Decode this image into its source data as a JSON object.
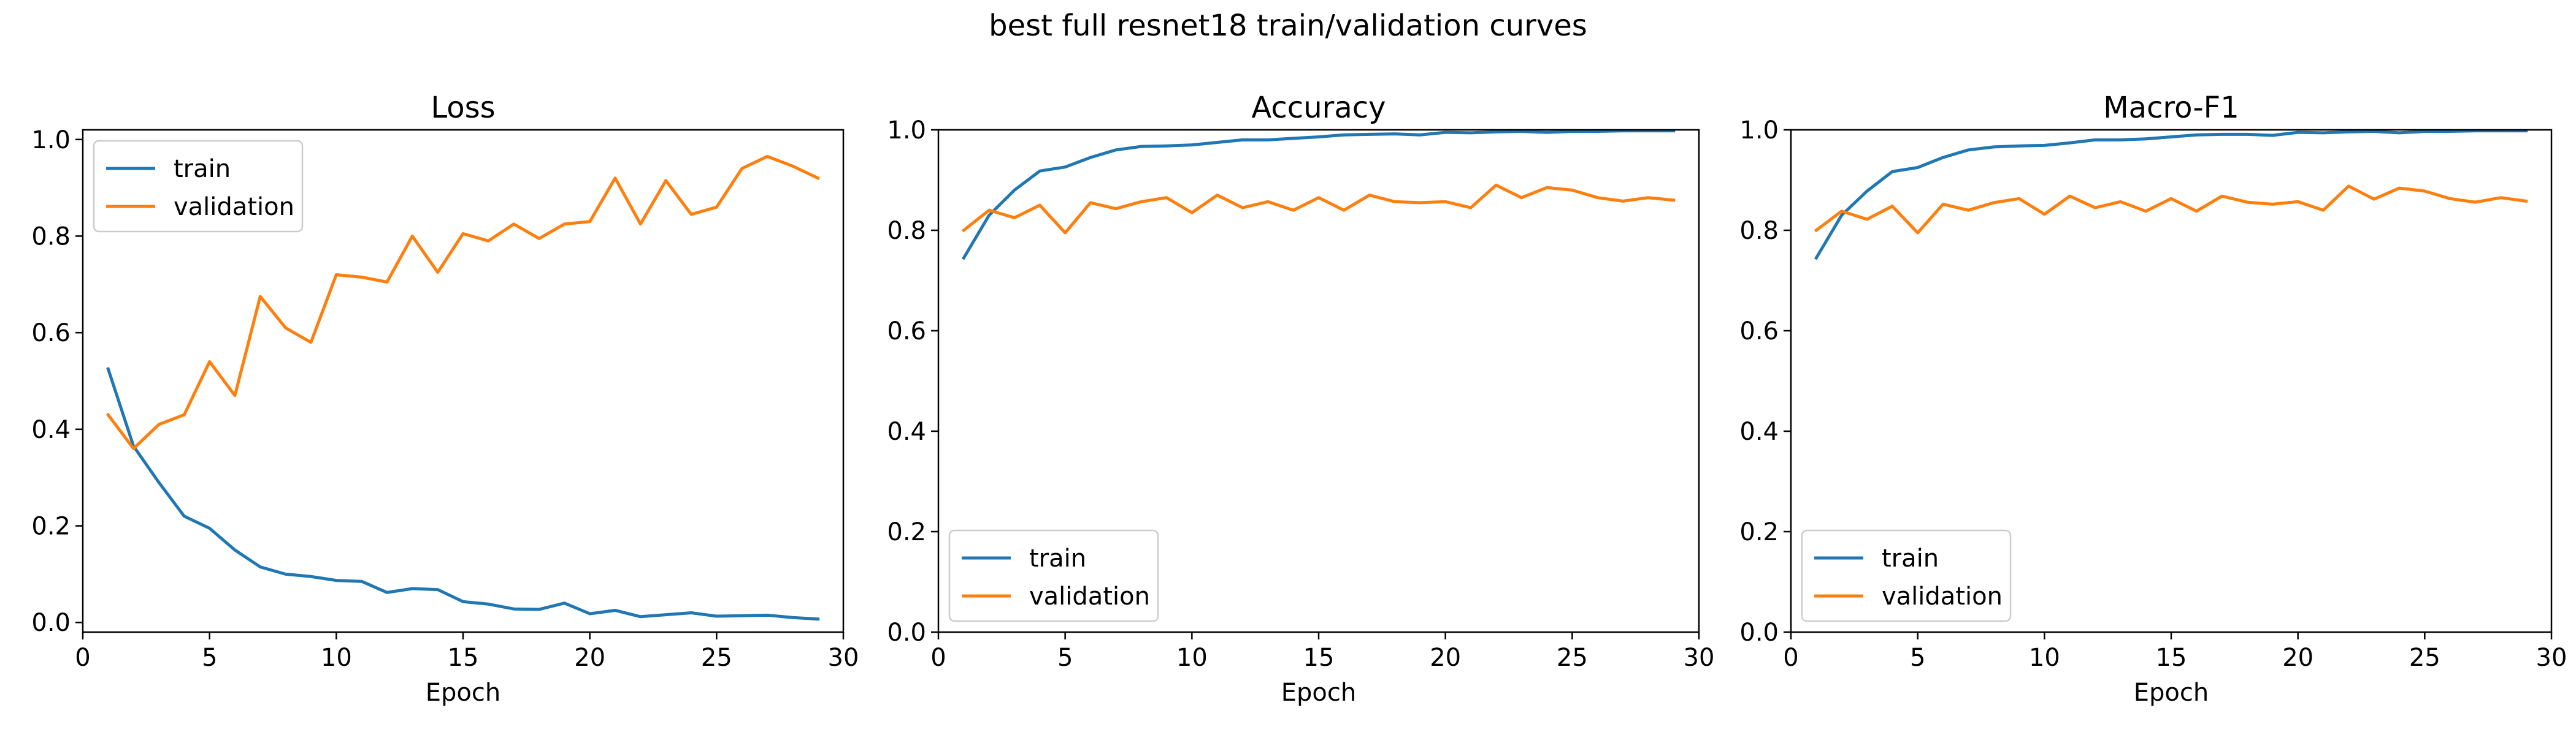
{
  "figure": {
    "suptitle": "best full resnet18 train/validation curves"
  },
  "colors": {
    "train": "#1f77b4",
    "validation": "#ff7f0e"
  },
  "chart_data": [
    {
      "type": "line",
      "title": "Loss",
      "xlabel": "Epoch",
      "ylabel": "",
      "xlim": [
        0,
        30
      ],
      "ylim": [
        -0.02,
        1.02
      ],
      "xticks": [
        0,
        5,
        10,
        15,
        20,
        25,
        30
      ],
      "yticks": [
        0.0,
        0.2,
        0.4,
        0.6,
        0.8,
        1.0
      ],
      "legend": "upper-left",
      "x": [
        1,
        2,
        3,
        4,
        5,
        6,
        7,
        8,
        9,
        10,
        11,
        12,
        13,
        14,
        15,
        16,
        17,
        18,
        19,
        20,
        21,
        22,
        23,
        24,
        25,
        26,
        27,
        28,
        29
      ],
      "series": [
        {
          "name": "train",
          "values": [
            0.525,
            0.365,
            0.29,
            0.22,
            0.195,
            0.15,
            0.115,
            0.1,
            0.095,
            0.087,
            0.085,
            0.062,
            0.07,
            0.068,
            0.043,
            0.038,
            0.028,
            0.027,
            0.04,
            0.018,
            0.025,
            0.012,
            0.016,
            0.02,
            0.013,
            0.014,
            0.015,
            0.01,
            0.007
          ]
        },
        {
          "name": "validation",
          "values": [
            0.43,
            0.36,
            0.41,
            0.43,
            0.54,
            0.47,
            0.675,
            0.61,
            0.58,
            0.72,
            0.715,
            0.705,
            0.8,
            0.725,
            0.805,
            0.79,
            0.825,
            0.795,
            0.825,
            0.83,
            0.92,
            0.825,
            0.915,
            0.845,
            0.86,
            0.94,
            0.965,
            0.945,
            0.92
          ]
        }
      ]
    },
    {
      "type": "line",
      "title": "Accuracy",
      "xlabel": "Epoch",
      "ylabel": "",
      "xlim": [
        0,
        30
      ],
      "ylim": [
        0.0,
        1.0
      ],
      "xticks": [
        0,
        5,
        10,
        15,
        20,
        25,
        30
      ],
      "yticks": [
        0.0,
        0.2,
        0.4,
        0.6,
        0.8,
        1.0
      ],
      "legend": "lower-left",
      "x": [
        1,
        2,
        3,
        4,
        5,
        6,
        7,
        8,
        9,
        10,
        11,
        12,
        13,
        14,
        15,
        16,
        17,
        18,
        19,
        20,
        21,
        22,
        23,
        24,
        25,
        26,
        27,
        28,
        29
      ],
      "series": [
        {
          "name": "train",
          "values": [
            0.745,
            0.83,
            0.88,
            0.918,
            0.926,
            0.945,
            0.96,
            0.967,
            0.968,
            0.97,
            0.975,
            0.98,
            0.98,
            0.983,
            0.986,
            0.99,
            0.991,
            0.992,
            0.99,
            0.995,
            0.994,
            0.996,
            0.997,
            0.995,
            0.997,
            0.997,
            0.998,
            0.998,
            0.998
          ]
        },
        {
          "name": "validation",
          "values": [
            0.8,
            0.84,
            0.825,
            0.85,
            0.795,
            0.855,
            0.843,
            0.857,
            0.865,
            0.835,
            0.87,
            0.845,
            0.857,
            0.84,
            0.865,
            0.84,
            0.87,
            0.857,
            0.855,
            0.857,
            0.845,
            0.89,
            0.865,
            0.885,
            0.88,
            0.865,
            0.858,
            0.865,
            0.86
          ]
        }
      ]
    },
    {
      "type": "line",
      "title": "Macro-F1",
      "xlabel": "Epoch",
      "ylabel": "",
      "xlim": [
        0,
        30
      ],
      "ylim": [
        0.0,
        1.0
      ],
      "xticks": [
        0,
        5,
        10,
        15,
        20,
        25,
        30
      ],
      "yticks": [
        0.0,
        0.2,
        0.4,
        0.6,
        0.8,
        1.0
      ],
      "legend": "lower-left",
      "x": [
        1,
        2,
        3,
        4,
        5,
        6,
        7,
        8,
        9,
        10,
        11,
        12,
        13,
        14,
        15,
        16,
        17,
        18,
        19,
        20,
        21,
        22,
        23,
        24,
        25,
        26,
        27,
        28,
        29
      ],
      "series": [
        {
          "name": "train",
          "values": [
            0.745,
            0.83,
            0.878,
            0.917,
            0.925,
            0.945,
            0.96,
            0.966,
            0.968,
            0.969,
            0.974,
            0.98,
            0.98,
            0.982,
            0.986,
            0.99,
            0.991,
            0.991,
            0.989,
            0.995,
            0.994,
            0.996,
            0.997,
            0.994,
            0.997,
            0.997,
            0.998,
            0.998,
            0.998
          ]
        },
        {
          "name": "validation",
          "values": [
            0.8,
            0.838,
            0.822,
            0.848,
            0.795,
            0.852,
            0.84,
            0.855,
            0.863,
            0.832,
            0.868,
            0.845,
            0.857,
            0.838,
            0.863,
            0.838,
            0.868,
            0.856,
            0.852,
            0.857,
            0.84,
            0.888,
            0.862,
            0.884,
            0.878,
            0.863,
            0.856,
            0.865,
            0.858
          ]
        }
      ]
    }
  ]
}
